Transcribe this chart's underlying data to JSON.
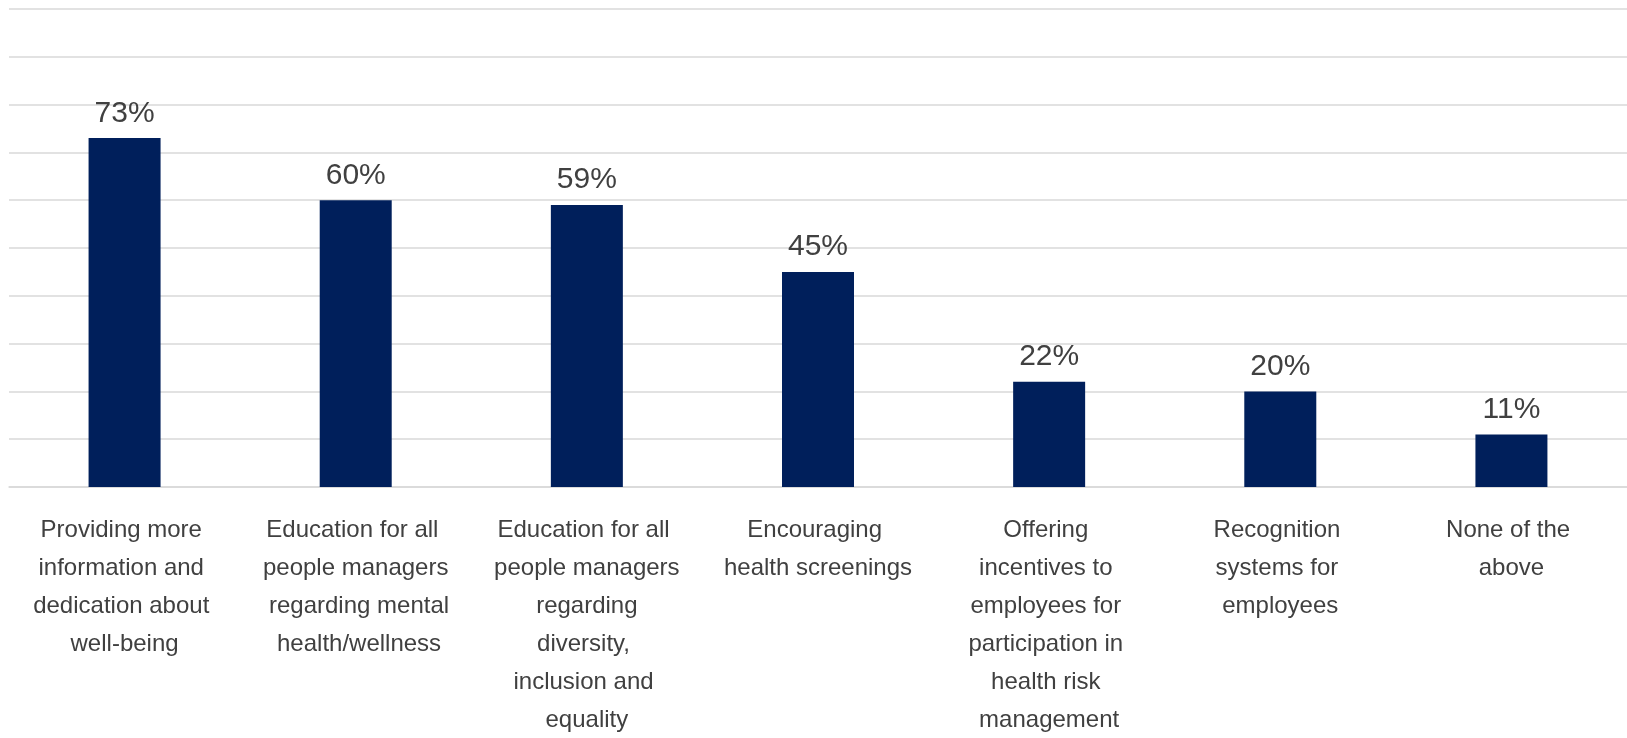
{
  "chart_data": {
    "type": "bar",
    "categories": [
      "Providing more information and dedication about well-being",
      "Education for all people managers regarding mental health/wellness",
      "Education for all people managers regarding diversity, inclusion and equality",
      "Encouraging health screenings",
      "Offering incentives to employees for participation in health risk management",
      "Recognition systems for employees",
      "None of the above"
    ],
    "values": [
      73,
      60,
      59,
      45,
      22,
      20,
      11
    ],
    "value_labels": [
      "73%",
      "60%",
      "59%",
      "45%",
      "22%",
      "20%",
      "11%"
    ],
    "color": "#001f5b",
    "ylim": [
      0,
      100
    ],
    "yticks": [
      {
        "value": 0,
        "label": null
      },
      {
        "value": 10,
        "label": null
      },
      {
        "value": 20,
        "label": null
      },
      {
        "value": 30,
        "label": null
      },
      {
        "value": 40,
        "label": null
      },
      {
        "value": 50,
        "label": null
      },
      {
        "value": 60,
        "label": null
      },
      {
        "value": 70,
        "label": null
      },
      {
        "value": 80,
        "label": null
      },
      {
        "value": 90,
        "label": null
      },
      {
        "value": 100,
        "label": null
      }
    ],
    "grid": "y",
    "tick_labels": "x"
  }
}
